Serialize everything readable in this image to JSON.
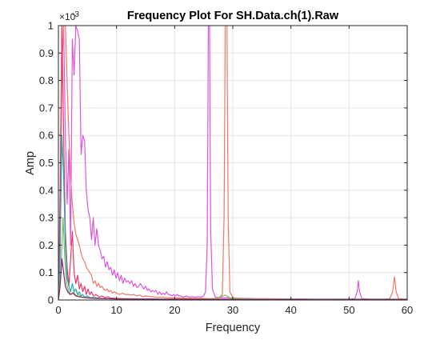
{
  "chart_data": {
    "type": "line",
    "title": "Frequency Plot For SH.Data.ch(1).Raw",
    "xlabel": "Frequency",
    "ylabel": "Amp",
    "y_exponent_label": "×10",
    "y_exponent_power": "-3",
    "xlim": [
      0,
      60
    ],
    "ylim": [
      0,
      1
    ],
    "y_scale_factor": 0.001,
    "grid": true,
    "x_ticks": [
      "0",
      "10",
      "20",
      "30",
      "40",
      "50",
      "60"
    ],
    "y_ticks": [
      "0",
      "0.1",
      "0.2",
      "0.3",
      "0.4",
      "0.5",
      "0.6",
      "0.7",
      "0.8",
      "0.9",
      "1"
    ],
    "series": [
      {
        "color": "#dd55dd",
        "points": [
          [
            0,
            0
          ],
          [
            0.3,
            0.15
          ],
          [
            0.6,
            1.0
          ],
          [
            0.9,
            1.0
          ],
          [
            1.2,
            0.6
          ],
          [
            1.5,
            0.35
          ],
          [
            1.8,
            0.55
          ],
          [
            2.1,
            0.2
          ],
          [
            2.4,
            0.95
          ],
          [
            2.7,
            0.82
          ],
          [
            3.0,
            1.0
          ],
          [
            3.3,
            0.98
          ],
          [
            3.6,
            0.95
          ],
          [
            3.9,
            0.53
          ],
          [
            4.2,
            0.6
          ],
          [
            4.5,
            0.58
          ],
          [
            4.8,
            0.4
          ],
          [
            5.1,
            0.33
          ],
          [
            5.4,
            0.3
          ],
          [
            5.7,
            0.22
          ],
          [
            6.0,
            0.3
          ],
          [
            6.3,
            0.2
          ],
          [
            6.6,
            0.26
          ],
          [
            6.9,
            0.2
          ],
          [
            7.2,
            0.18
          ],
          [
            7.5,
            0.15
          ],
          [
            7.8,
            0.16
          ],
          [
            8.1,
            0.12
          ],
          [
            8.4,
            0.14
          ],
          [
            8.7,
            0.11
          ],
          [
            9.0,
            0.12
          ],
          [
            9.3,
            0.09
          ],
          [
            9.6,
            0.11
          ],
          [
            9.9,
            0.08
          ],
          [
            10.2,
            0.1
          ],
          [
            10.5,
            0.07
          ],
          [
            10.8,
            0.09
          ],
          [
            11.1,
            0.06
          ],
          [
            11.4,
            0.08
          ],
          [
            11.7,
            0.065
          ],
          [
            12.0,
            0.07
          ],
          [
            12.3,
            0.06
          ],
          [
            12.6,
            0.07
          ],
          [
            12.9,
            0.05
          ],
          [
            13.2,
            0.06
          ],
          [
            13.5,
            0.045
          ],
          [
            13.8,
            0.05
          ],
          [
            14.1,
            0.06
          ],
          [
            14.4,
            0.05
          ],
          [
            14.7,
            0.04
          ],
          [
            15.0,
            0.05
          ],
          [
            15.3,
            0.035
          ],
          [
            15.6,
            0.04
          ],
          [
            15.9,
            0.03
          ],
          [
            16.2,
            0.035
          ],
          [
            16.5,
            0.03
          ],
          [
            16.8,
            0.035
          ],
          [
            17.1,
            0.02
          ],
          [
            17.4,
            0.03
          ],
          [
            17.7,
            0.02
          ],
          [
            18.0,
            0.025
          ],
          [
            18.3,
            0.02
          ],
          [
            18.6,
            0.03
          ],
          [
            18.9,
            0.02
          ],
          [
            19.2,
            0.02
          ],
          [
            19.5,
            0.015
          ],
          [
            19.8,
            0.02
          ],
          [
            20.1,
            0.015
          ],
          [
            20.4,
            0.02
          ],
          [
            20.7,
            0.015
          ],
          [
            21.0,
            0.015
          ],
          [
            21.5,
            0.01
          ],
          [
            22.0,
            0.015
          ],
          [
            22.5,
            0.01
          ],
          [
            23.0,
            0.012
          ],
          [
            23.5,
            0.01
          ],
          [
            24.0,
            0.012
          ],
          [
            24.5,
            0.01
          ],
          [
            25.0,
            0.015
          ],
          [
            25.3,
            0.03
          ],
          [
            25.6,
            0.2
          ],
          [
            25.8,
            1.0
          ],
          [
            26.0,
            1.0
          ],
          [
            26.2,
            0.25
          ],
          [
            26.5,
            0.04
          ],
          [
            27.0,
            0.01
          ],
          [
            28.0,
            0.008
          ],
          [
            29.0,
            0.008
          ],
          [
            30.0,
            0.006
          ],
          [
            32.0,
            0.006
          ],
          [
            34.0,
            0.005
          ],
          [
            36.0,
            0.005
          ],
          [
            38.0,
            0.004
          ],
          [
            40.0,
            0.004
          ],
          [
            42.0,
            0.004
          ],
          [
            44.0,
            0.003
          ],
          [
            46.0,
            0.003
          ],
          [
            48.0,
            0.003
          ],
          [
            50.0,
            0.003
          ],
          [
            51.0,
            0.005
          ],
          [
            51.4,
            0.03
          ],
          [
            51.6,
            0.07
          ],
          [
            51.8,
            0.03
          ],
          [
            52.2,
            0.005
          ],
          [
            54.0,
            0.003
          ],
          [
            56.0,
            0.003
          ],
          [
            58.0,
            0.003
          ],
          [
            60.0,
            0.002
          ]
        ]
      },
      {
        "color": "#ee7766",
        "points": [
          [
            0,
            0
          ],
          [
            0.3,
            0.3
          ],
          [
            0.6,
            0.85
          ],
          [
            0.9,
            1.0
          ],
          [
            1.2,
            1.0
          ],
          [
            1.5,
            0.8
          ],
          [
            1.8,
            0.6
          ],
          [
            2.1,
            0.45
          ],
          [
            2.4,
            0.35
          ],
          [
            2.7,
            0.28
          ],
          [
            3.0,
            0.24
          ],
          [
            3.3,
            0.22
          ],
          [
            3.6,
            0.2
          ],
          [
            3.9,
            0.17
          ],
          [
            4.2,
            0.15
          ],
          [
            4.5,
            0.14
          ],
          [
            4.8,
            0.12
          ],
          [
            5.1,
            0.11
          ],
          [
            5.4,
            0.1
          ],
          [
            5.7,
            0.09
          ],
          [
            6.0,
            0.06
          ],
          [
            6.3,
            0.07
          ],
          [
            6.6,
            0.05
          ],
          [
            6.9,
            0.06
          ],
          [
            7.2,
            0.045
          ],
          [
            7.5,
            0.05
          ],
          [
            7.8,
            0.04
          ],
          [
            8.1,
            0.035
          ],
          [
            8.4,
            0.04
          ],
          [
            8.7,
            0.03
          ],
          [
            9.0,
            0.035
          ],
          [
            9.3,
            0.025
          ],
          [
            9.6,
            0.03
          ],
          [
            10.0,
            0.025
          ],
          [
            10.5,
            0.02
          ],
          [
            11.0,
            0.025
          ],
          [
            11.5,
            0.02
          ],
          [
            12.0,
            0.02
          ],
          [
            12.5,
            0.018
          ],
          [
            13.0,
            0.02
          ],
          [
            13.5,
            0.015
          ],
          [
            14.0,
            0.018
          ],
          [
            14.5,
            0.012
          ],
          [
            15.0,
            0.015
          ],
          [
            16.0,
            0.012
          ],
          [
            17.0,
            0.01
          ],
          [
            18.0,
            0.01
          ],
          [
            19.0,
            0.008
          ],
          [
            20.0,
            0.008
          ],
          [
            22.0,
            0.006
          ],
          [
            24.0,
            0.006
          ],
          [
            26.0,
            0.005
          ],
          [
            27.5,
            0.006
          ],
          [
            28.2,
            0.02
          ],
          [
            28.5,
            0.3
          ],
          [
            28.7,
            1.0
          ],
          [
            29.0,
            1.0
          ],
          [
            29.2,
            0.3
          ],
          [
            29.5,
            0.03
          ],
          [
            30.0,
            0.008
          ],
          [
            32.0,
            0.005
          ],
          [
            34.0,
            0.004
          ],
          [
            36.0,
            0.004
          ],
          [
            38.0,
            0.004
          ],
          [
            40.0,
            0.003
          ],
          [
            42.0,
            0.003
          ],
          [
            44.0,
            0.003
          ],
          [
            46.0,
            0.003
          ],
          [
            48.0,
            0.003
          ],
          [
            50.0,
            0.003
          ],
          [
            52.0,
            0.003
          ],
          [
            54.0,
            0.003
          ],
          [
            56.0,
            0.003
          ],
          [
            57.0,
            0.005
          ],
          [
            57.5,
            0.03
          ],
          [
            57.8,
            0.085
          ],
          [
            58.1,
            0.03
          ],
          [
            58.5,
            0.005
          ],
          [
            60.0,
            0.003
          ]
        ]
      },
      {
        "color": "#ee3366",
        "points": [
          [
            0,
            0
          ],
          [
            0.3,
            0.4
          ],
          [
            0.6,
            1.0
          ],
          [
            0.9,
            0.6
          ],
          [
            1.2,
            0.25
          ],
          [
            1.5,
            0.12
          ],
          [
            1.8,
            0.05
          ],
          [
            2.1,
            0.15
          ],
          [
            2.4,
            0.25
          ],
          [
            2.7,
            0.1
          ],
          [
            3.0,
            0.06
          ],
          [
            3.3,
            0.09
          ],
          [
            3.6,
            0.04
          ],
          [
            3.9,
            0.06
          ],
          [
            4.2,
            0.03
          ],
          [
            4.5,
            0.05
          ],
          [
            4.8,
            0.02
          ],
          [
            5.1,
            0.04
          ],
          [
            5.4,
            0.02
          ],
          [
            5.7,
            0.03
          ],
          [
            6.0,
            0.015
          ],
          [
            6.5,
            0.02
          ],
          [
            7.0,
            0.01
          ],
          [
            7.5,
            0.015
          ],
          [
            8.0,
            0.008
          ],
          [
            8.5,
            0.012
          ],
          [
            9.0,
            0.007
          ],
          [
            10.0,
            0.006
          ],
          [
            11.0,
            0.005
          ],
          [
            12.0,
            0.005
          ],
          [
            14.0,
            0.004
          ],
          [
            16.0,
            0.004
          ],
          [
            18.0,
            0.003
          ],
          [
            20.0,
            0.003
          ],
          [
            25.0,
            0.003
          ],
          [
            30.0,
            0.003
          ],
          [
            35.0,
            0.002
          ],
          [
            40.0,
            0.002
          ],
          [
            45.0,
            0.002
          ],
          [
            50.0,
            0.002
          ],
          [
            55.0,
            0.002
          ],
          [
            60.0,
            0.002
          ]
        ]
      },
      {
        "color": "#22aaaa",
        "points": [
          [
            0,
            0
          ],
          [
            0.3,
            0.2
          ],
          [
            0.6,
            0.6
          ],
          [
            0.9,
            0.45
          ],
          [
            1.2,
            0.2
          ],
          [
            1.5,
            0.08
          ],
          [
            1.8,
            0.05
          ],
          [
            2.1,
            0.03
          ],
          [
            2.4,
            0.06
          ],
          [
            2.7,
            0.03
          ],
          [
            3.0,
            0.04
          ],
          [
            3.3,
            0.02
          ],
          [
            3.6,
            0.03
          ],
          [
            3.9,
            0.015
          ],
          [
            4.2,
            0.02
          ],
          [
            4.5,
            0.01
          ],
          [
            5.0,
            0.015
          ],
          [
            5.5,
            0.008
          ],
          [
            6.0,
            0.01
          ],
          [
            7.0,
            0.006
          ],
          [
            8.0,
            0.005
          ],
          [
            10.0,
            0.004
          ],
          [
            12.0,
            0.003
          ],
          [
            15.0,
            0.003
          ],
          [
            20.0,
            0.002
          ],
          [
            25.0,
            0.002
          ],
          [
            30.0,
            0.002
          ],
          [
            40.0,
            0.002
          ],
          [
            50.0,
            0.002
          ],
          [
            60.0,
            0.002
          ]
        ]
      },
      {
        "color": "#77bb66",
        "points": [
          [
            0,
            0
          ],
          [
            0.4,
            0.1
          ],
          [
            0.8,
            0.3
          ],
          [
            1.1,
            0.15
          ],
          [
            1.4,
            0.06
          ],
          [
            1.8,
            0.03
          ],
          [
            2.2,
            0.02
          ],
          [
            2.6,
            0.03
          ],
          [
            3.0,
            0.015
          ],
          [
            3.5,
            0.02
          ],
          [
            4.0,
            0.01
          ],
          [
            5.0,
            0.008
          ],
          [
            6.0,
            0.006
          ],
          [
            8.0,
            0.005
          ],
          [
            10.0,
            0.004
          ],
          [
            15.0,
            0.003
          ],
          [
            20.0,
            0.003
          ],
          [
            25.0,
            0.003
          ],
          [
            27.0,
            0.004
          ],
          [
            28.0,
            0.012
          ],
          [
            28.7,
            0.018
          ],
          [
            29.5,
            0.008
          ],
          [
            31.0,
            0.004
          ],
          [
            35.0,
            0.003
          ],
          [
            40.0,
            0.003
          ],
          [
            50.0,
            0.002
          ],
          [
            60.0,
            0.002
          ]
        ]
      },
      {
        "color": "#882266",
        "points": [
          [
            0,
            0
          ],
          [
            0.3,
            0.05
          ],
          [
            0.6,
            0.15
          ],
          [
            0.9,
            0.1
          ],
          [
            1.2,
            0.05
          ],
          [
            1.6,
            0.03
          ],
          [
            2.0,
            0.02
          ],
          [
            2.5,
            0.025
          ],
          [
            3.0,
            0.015
          ],
          [
            4.0,
            0.01
          ],
          [
            5.0,
            0.008
          ],
          [
            6.0,
            0.006
          ],
          [
            8.0,
            0.005
          ],
          [
            10.0,
            0.004
          ],
          [
            15.0,
            0.003
          ],
          [
            20.0,
            0.003
          ],
          [
            30.0,
            0.002
          ],
          [
            40.0,
            0.002
          ],
          [
            50.0,
            0.002
          ],
          [
            60.0,
            0.002
          ]
        ]
      }
    ]
  }
}
